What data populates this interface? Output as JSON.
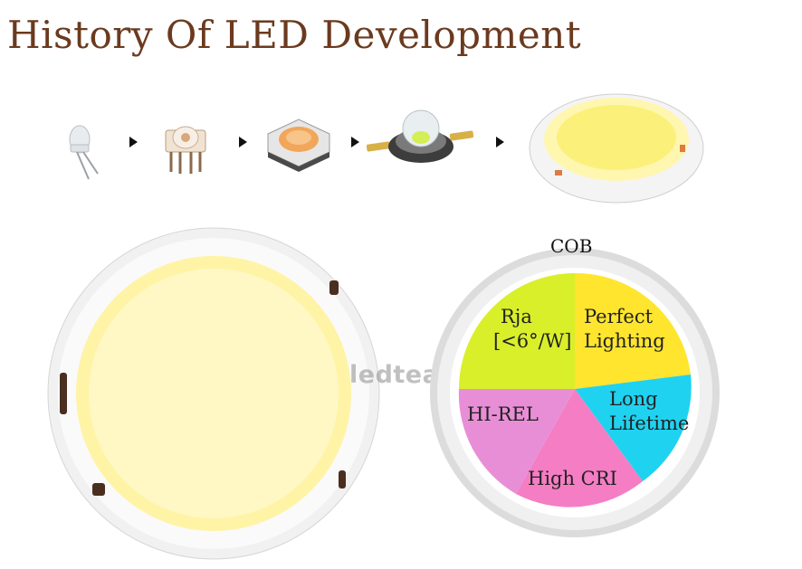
{
  "header": {
    "title": "History Of  LED Development"
  },
  "stages": [
    {
      "icon": "through-hole-led-icon"
    },
    {
      "icon": "piranha-led-icon"
    },
    {
      "icon": "smd-led-icon"
    },
    {
      "icon": "high-power-led-icon"
    },
    {
      "icon": "small-cob-led-icon"
    }
  ],
  "watermark": "ledteam",
  "cob_diagram": {
    "title": "COB",
    "segments": [
      {
        "key": "rja",
        "line1": "Rja",
        "line2": "[<6°/W]",
        "color": "#d9ef2a"
      },
      {
        "key": "perfect",
        "line1": "Perfect",
        "line2": "Lighting",
        "color": "#ffe52e"
      },
      {
        "key": "long",
        "line1": "Long",
        "line2": "Lifetime",
        "color": "#1fd2f0"
      },
      {
        "key": "cri",
        "line1": "High CRI",
        "line2": "",
        "color": "#f47dc4"
      },
      {
        "key": "rel",
        "line1": "HI-REL",
        "line2": "",
        "color": "#e88ed6"
      }
    ]
  }
}
